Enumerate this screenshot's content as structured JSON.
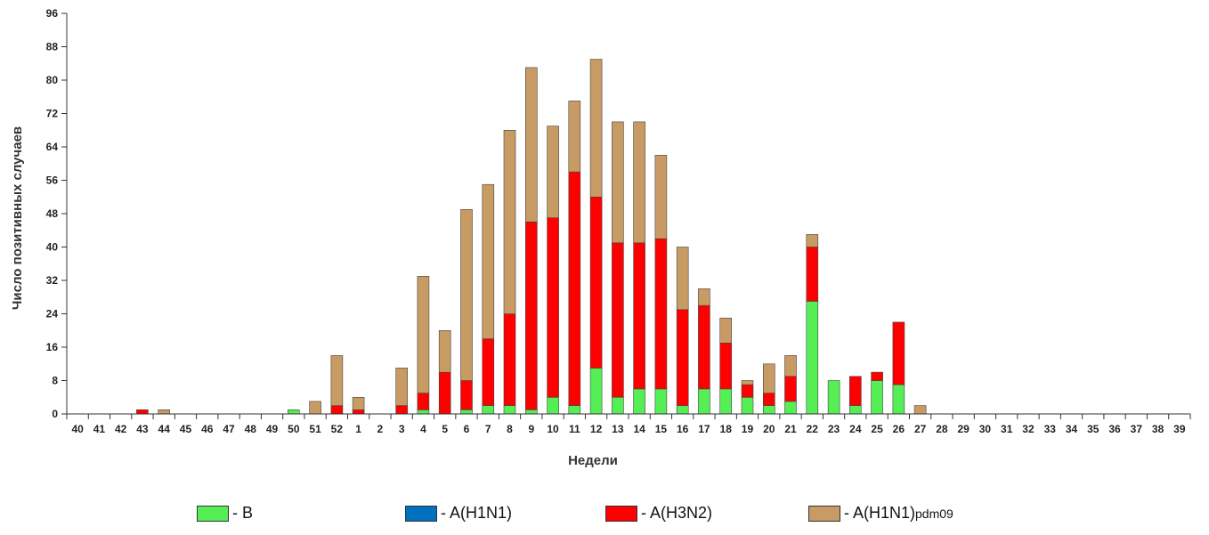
{
  "chart_data": {
    "type": "bar",
    "stacked": true,
    "ylabel": "Число позитивных случаев",
    "xlabel": "Недели",
    "ylim": [
      0,
      96
    ],
    "yticks": [
      0,
      8,
      16,
      24,
      32,
      40,
      48,
      56,
      64,
      72,
      80,
      88,
      96
    ],
    "grid": false,
    "legend_position": "bottom",
    "categories": [
      "40",
      "41",
      "42",
      "43",
      "44",
      "45",
      "46",
      "47",
      "48",
      "49",
      "50",
      "51",
      "52",
      "1",
      "2",
      "3",
      "4",
      "5",
      "6",
      "7",
      "8",
      "9",
      "10",
      "11",
      "12",
      "13",
      "14",
      "15",
      "16",
      "17",
      "18",
      "19",
      "20",
      "21",
      "22",
      "23",
      "24",
      "25",
      "26",
      "27",
      "28",
      "29",
      "30",
      "31",
      "32",
      "33",
      "34",
      "35",
      "36",
      "37",
      "38",
      "39"
    ],
    "series": [
      {
        "name": "B",
        "color": "#55ee55",
        "values": [
          0,
          0,
          0,
          0,
          0,
          0,
          0,
          0,
          0,
          0,
          1,
          0,
          0,
          0,
          0,
          0,
          1,
          0,
          1,
          2,
          2,
          1,
          4,
          2,
          11,
          4,
          6,
          6,
          2,
          6,
          6,
          4,
          2,
          3,
          27,
          8,
          2,
          8,
          7,
          0,
          0,
          0,
          0,
          0,
          0,
          0,
          0,
          0,
          0,
          0,
          0,
          0
        ]
      },
      {
        "name": "A(H1N1)",
        "color": "#0070c0",
        "values": [
          0,
          0,
          0,
          0,
          0,
          0,
          0,
          0,
          0,
          0,
          0,
          0,
          0,
          0,
          0,
          0,
          0,
          0,
          0,
          0,
          0,
          0,
          0,
          0,
          0,
          0,
          0,
          0,
          0,
          0,
          0,
          0,
          0,
          0,
          0,
          0,
          0,
          0,
          0,
          0,
          0,
          0,
          0,
          0,
          0,
          0,
          0,
          0,
          0,
          0,
          0,
          0
        ]
      },
      {
        "name": "A(H3N2)",
        "color": "#ff0000",
        "values": [
          0,
          0,
          0,
          1,
          0,
          0,
          0,
          0,
          0,
          0,
          0,
          0,
          2,
          1,
          0,
          2,
          4,
          10,
          7,
          16,
          22,
          45,
          43,
          56,
          41,
          37,
          35,
          36,
          23,
          20,
          11,
          3,
          3,
          6,
          13,
          0,
          7,
          2,
          15,
          0,
          0,
          0,
          0,
          0,
          0,
          0,
          0,
          0,
          0,
          0,
          0,
          0
        ]
      },
      {
        "name": "A(H1N1)pdm09",
        "color": "#c89a64",
        "values": [
          0,
          0,
          0,
          0,
          1,
          0,
          0,
          0,
          0,
          0,
          0,
          3,
          12,
          3,
          0,
          9,
          28,
          10,
          41,
          37,
          44,
          37,
          22,
          17,
          33,
          29,
          29,
          20,
          15,
          4,
          6,
          1,
          7,
          5,
          3,
          0,
          0,
          0,
          0,
          2,
          0,
          0,
          0,
          0,
          0,
          0,
          0,
          0,
          0,
          0,
          0,
          0
        ]
      }
    ]
  },
  "legend": {
    "items": [
      {
        "label": "- B",
        "sub": "",
        "color": "#55ee55"
      },
      {
        "label": "- A(H1N1)",
        "sub": "",
        "color": "#0070c0"
      },
      {
        "label": "- A(H3N2)",
        "sub": "",
        "color": "#ff0000"
      },
      {
        "label": "- A(H1N1)",
        "sub": "pdm09",
        "color": "#c89a64"
      }
    ]
  }
}
